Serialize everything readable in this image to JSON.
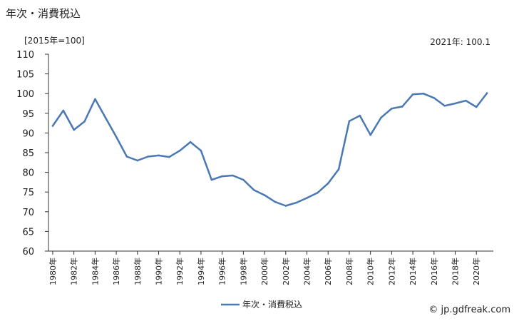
{
  "title": "年次・消費税込",
  "unit_label": "[2015年=100]",
  "latest_label": "2021年: 100.1",
  "source": "© jp.gdfreak.com",
  "colors": {
    "series": "#4a78b5",
    "axis": "#333333"
  },
  "chart_data": {
    "type": "line",
    "x": [
      1980,
      1981,
      1982,
      1983,
      1984,
      1985,
      1986,
      1987,
      1988,
      1989,
      1990,
      1991,
      1992,
      1993,
      1994,
      1995,
      1996,
      1997,
      1998,
      1999,
      2000,
      2001,
      2002,
      2003,
      2004,
      2005,
      2006,
      2007,
      2008,
      2009,
      2010,
      2011,
      2012,
      2013,
      2014,
      2015,
      2016,
      2017,
      2018,
      2019,
      2020,
      2021
    ],
    "series": [
      {
        "name": "年次・消費税込",
        "values": [
          91.8,
          95.7,
          90.8,
          92.9,
          98.6,
          93.8,
          89.0,
          84.0,
          83.0,
          84.0,
          84.3,
          83.9,
          85.5,
          87.7,
          85.5,
          78.1,
          79.0,
          79.2,
          78.1,
          75.5,
          74.2,
          72.5,
          71.5,
          72.3,
          73.5,
          74.8,
          77.2,
          80.8,
          93.0,
          94.4,
          89.5,
          93.9,
          96.2,
          96.7,
          99.8,
          100.0,
          98.9,
          96.9,
          97.5,
          98.2,
          96.6,
          100.1
        ]
      }
    ],
    "ylim": [
      60,
      110
    ],
    "yticks": [
      "60",
      "65",
      "70",
      "75",
      "80",
      "85",
      "90",
      "95",
      "100",
      "105",
      "110"
    ],
    "xticks": [
      "1980年",
      "1982年",
      "1984年",
      "1986年",
      "1988年",
      "1990年",
      "1992年",
      "1994年",
      "1996年",
      "1998年",
      "2000年",
      "2002年",
      "2004年",
      "2006年",
      "2008年",
      "2010年",
      "2012年",
      "2014年",
      "2016年",
      "2018年",
      "2020年"
    ],
    "xtick_years": [
      1980,
      1982,
      1984,
      1986,
      1988,
      1990,
      1992,
      1994,
      1996,
      1998,
      2000,
      2002,
      2004,
      2006,
      2008,
      2010,
      2012,
      2014,
      2016,
      2018,
      2020
    ],
    "legend": [
      "年次・消費税込"
    ],
    "legend_position": "bottom-center",
    "grid": false
  }
}
